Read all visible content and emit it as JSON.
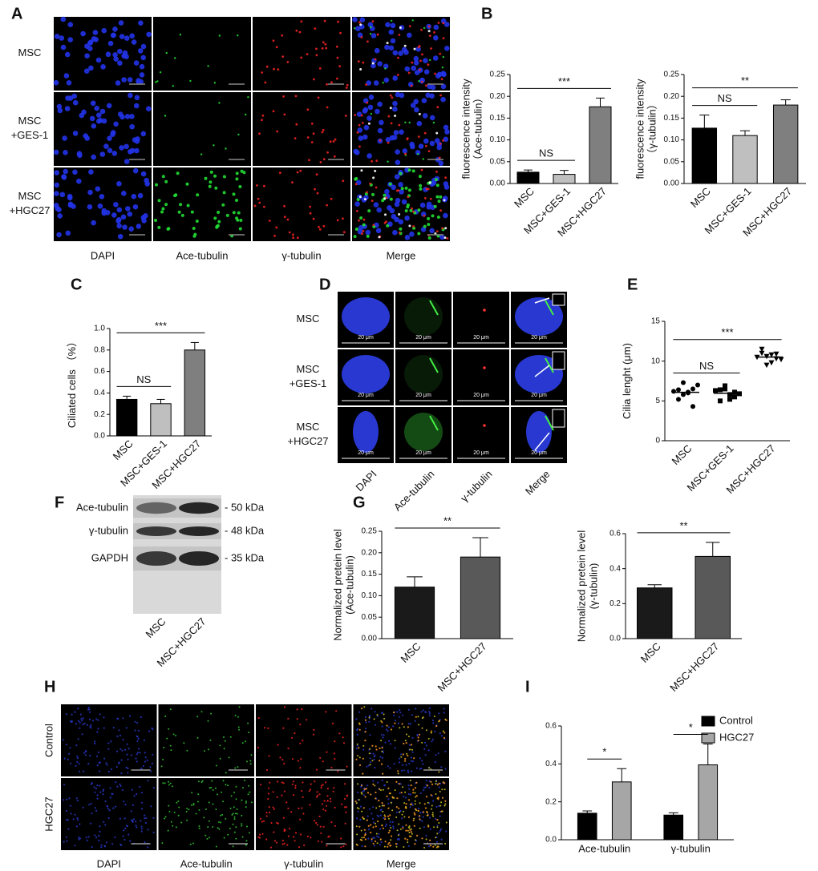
{
  "panel_letters": [
    "A",
    "B",
    "C",
    "D",
    "E",
    "F",
    "G",
    "H",
    "I"
  ],
  "image_A": {
    "rows": [
      [
        "MSC"
      ],
      [
        "MSC",
        "+GES-1"
      ],
      [
        "MSC",
        "+HGC27"
      ]
    ],
    "columns": [
      "DAPI",
      "Ace-tubulin",
      "γ-tubulin",
      "Merge"
    ]
  },
  "image_D": {
    "rows": [
      [
        "MSC"
      ],
      [
        "MSC",
        "+GES-1"
      ],
      [
        "MSC",
        "+HGC27"
      ]
    ],
    "columns": [
      "DAPI",
      "Ace-tubulin",
      "γ-tubulin",
      "Merge"
    ],
    "scale_bar": "20 μm"
  },
  "image_H": {
    "rows": [
      "Control",
      "HGC27"
    ],
    "columns": [
      "DAPI",
      "Ace-tubulin",
      "γ-tubulin",
      "Merge"
    ]
  },
  "blot_F": {
    "rows": [
      "Ace-tubulin",
      "γ-tubulin",
      "GAPDH"
    ],
    "markers": [
      "- 50 kDa",
      "- 48 kDa",
      "- 35 kDa"
    ],
    "lanes": [
      "MSC",
      "MSC+HGC27"
    ]
  },
  "chart_data": [
    {
      "type": "bar",
      "categories": [
        "MSC",
        "MSC+GES-1",
        "MSC+HGC27"
      ],
      "values": [
        0.026,
        0.021,
        0.176
      ],
      "errors": [
        0.005,
        0.009,
        0.02
      ],
      "colors": [
        "#000000",
        "#bfbfbf",
        "#7f7f7f"
      ],
      "y_label": [
        "fluorescence intensity",
        "（Ace-tubulin）"
      ],
      "ylim": [
        0,
        0.25
      ],
      "yticks": [
        {
          "value": 0,
          "label": "0.00"
        },
        0.05,
        {
          "value": 0.1,
          "label": "0.10"
        },
        0.15,
        {
          "value": 0.2,
          "label": "0.20"
        },
        0.25
      ],
      "comparisons": [
        {
          "label": "NS",
          "between": [
            "MSC",
            "MSC+GES-1"
          ]
        },
        {
          "label": "***",
          "between": [
            "MSC",
            "MSC+HGC27"
          ]
        }
      ]
    },
    {
      "type": "bar",
      "categories": [
        "MSC",
        "MSC+GES-1",
        "MSC+HGC27"
      ],
      "values": [
        0.127,
        0.11,
        0.18
      ],
      "errors": [
        0.03,
        0.011,
        0.012
      ],
      "colors": [
        "#000000",
        "#bfbfbf",
        "#7f7f7f"
      ],
      "y_label": [
        "fluorescence intensity",
        "（γ-tubulin）"
      ],
      "ylim": [
        0,
        0.25
      ],
      "yticks": [
        {
          "value": 0,
          "label": "0.00"
        },
        0.05,
        {
          "value": 0.1,
          "label": "0.10"
        },
        0.15,
        {
          "value": 0.2,
          "label": "0.20"
        },
        0.25
      ],
      "comparisons": [
        {
          "label": "NS",
          "between": [
            "MSC",
            "MSC+GES-1"
          ]
        },
        {
          "label": "**",
          "between": [
            "MSC",
            "MSC+HGC27"
          ]
        }
      ]
    },
    {
      "type": "bar",
      "categories": [
        "MSC",
        "MSC+GES-1",
        "MSC+HGC27"
      ],
      "values": [
        0.34,
        0.3,
        0.8
      ],
      "errors": [
        0.03,
        0.04,
        0.07
      ],
      "colors": [
        "#000000",
        "#bfbfbf",
        "#7f7f7f"
      ],
      "y_label": [
        "Ciliated cells （%）"
      ],
      "ylim": [
        0,
        1
      ],
      "yticks": [
        {
          "value": 0,
          "label": "0.0"
        },
        0.2,
        0.4,
        0.6,
        0.8,
        {
          "value": 1,
          "label": "1.0"
        }
      ],
      "comparisons": [
        {
          "label": "NS",
          "between": [
            "MSC",
            "MSC+GES-1"
          ]
        },
        {
          "label": "***",
          "between": [
            "MSC",
            "MSC+HGC27"
          ]
        }
      ]
    },
    {
      "type": "strip",
      "categories": [
        "MSC",
        "MSC+GES-1",
        "MSC+HGC27"
      ],
      "values": [
        [
          6.2,
          5.2,
          7.3,
          6.0,
          4.3,
          6.4,
          5.8,
          6.1,
          6.5,
          7.0
        ],
        [
          6.3,
          5.0,
          6.5,
          5.8,
          5.5,
          6.4,
          6.9,
          5.2,
          6.1,
          5.9
        ],
        [
          10.5,
          11.5,
          9.5,
          10.8,
          10.3,
          11.0,
          10.6,
          9.8,
          10.9,
          10.2
        ]
      ],
      "markers": [
        "circle",
        "square",
        "triangle-down"
      ],
      "color": "#000000",
      "y_label": [
        "Cilia lenght (μm)"
      ],
      "ylim": [
        0,
        15
      ],
      "yticks": [
        0,
        5,
        10,
        15
      ],
      "comparisons": [
        {
          "label": "NS",
          "between": [
            "MSC",
            "MSC+GES-1"
          ]
        },
        {
          "label": "***",
          "between": [
            "MSC",
            "MSC+HGC27"
          ]
        }
      ]
    },
    {
      "type": "bar",
      "categories": [
        "MSC",
        "MSC+HGC27"
      ],
      "values": [
        0.12,
        0.19
      ],
      "errors": [
        0.024,
        0.045
      ],
      "colors": [
        "#1a1a1a",
        "#595959"
      ],
      "y_label": [
        "Normalized pretein level",
        "(Ace-tubulin)"
      ],
      "ylim": [
        0,
        0.25
      ],
      "yticks": [
        {
          "value": 0,
          "label": "0.00"
        },
        0.05,
        {
          "value": 0.1,
          "label": "0.10"
        },
        0.15,
        {
          "value": 0.2,
          "label": "0.20"
        },
        0.25
      ],
      "comparisons": [
        {
          "label": "**",
          "between": [
            "MSC",
            "MSC+HGC27"
          ]
        }
      ]
    },
    {
      "type": "bar",
      "categories": [
        "MSC",
        "MSC+HGC27"
      ],
      "values": [
        0.29,
        0.47
      ],
      "errors": [
        0.018,
        0.08
      ],
      "colors": [
        "#1a1a1a",
        "#595959"
      ],
      "y_label": [
        "Normalized pretein level",
        "(γ-tubulin)"
      ],
      "ylim": [
        0,
        0.6
      ],
      "yticks": [
        {
          "value": 0,
          "label": "0.0"
        },
        0.2,
        0.4,
        0.6
      ],
      "comparisons": [
        {
          "label": "**",
          "between": [
            "MSC",
            "MSC+HGC27"
          ]
        }
      ]
    },
    {
      "type": "grouped-bar",
      "categories": [
        "Ace-tubulin",
        "γ-tubulin"
      ],
      "series": [
        {
          "name": "Control",
          "color": "#000000",
          "values": [
            0.14,
            0.13
          ],
          "errors": [
            0.012,
            0.012
          ]
        },
        {
          "name": "HGC27",
          "color": "#a6a6a6",
          "values": [
            0.305,
            0.395
          ],
          "errors": [
            0.07,
            0.11
          ]
        }
      ],
      "ylim": [
        0,
        0.6
      ],
      "yticks": [
        {
          "value": 0,
          "label": "0.0"
        },
        0.2,
        0.4,
        0.6
      ],
      "legend": "upper right",
      "comparisons": [
        {
          "label": "*",
          "category": "Ace-tubulin"
        },
        {
          "label": "*",
          "category": "γ-tubulin"
        }
      ]
    }
  ]
}
